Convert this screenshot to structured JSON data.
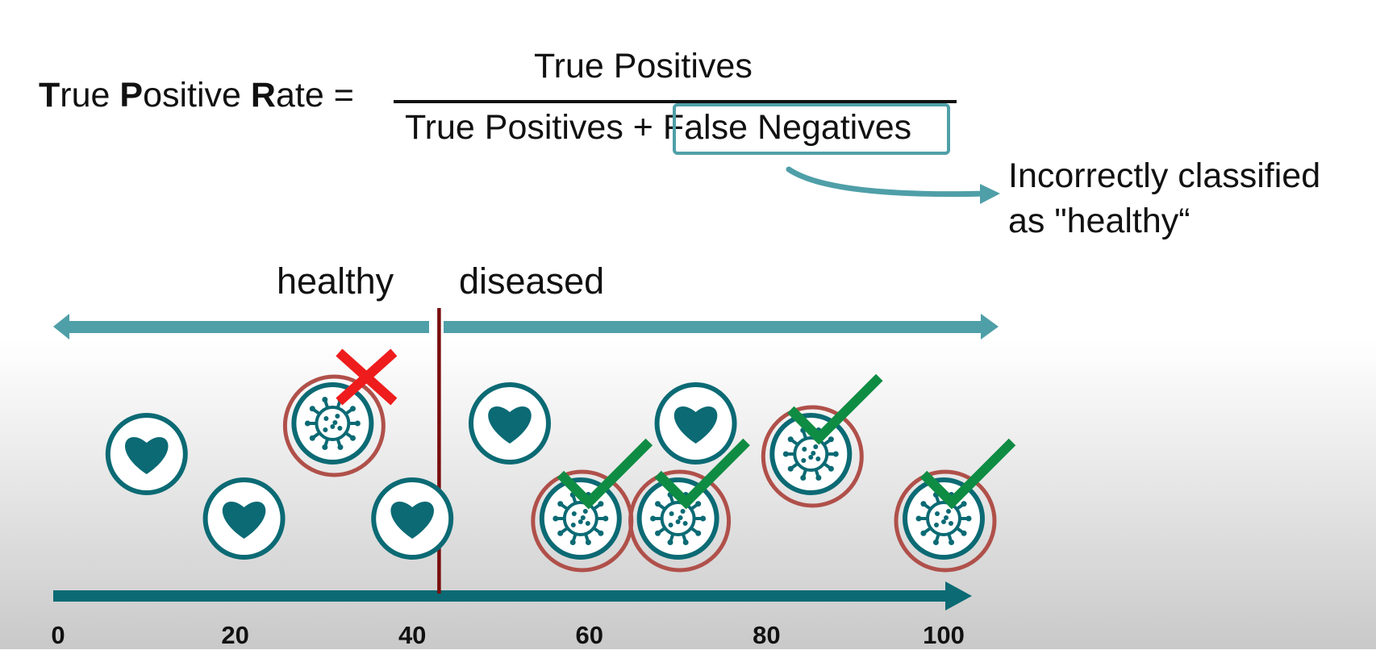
{
  "formula": {
    "lhs_parts": [
      {
        "text": "T",
        "bold": true
      },
      {
        "text": "rue ",
        "bold": false
      },
      {
        "text": "P",
        "bold": true
      },
      {
        "text": "ositive ",
        "bold": false
      },
      {
        "text": "R",
        "bold": true
      },
      {
        "text": "ate =",
        "bold": false
      }
    ],
    "numerator": "True Positives",
    "denominator_left": "True Positives + ",
    "denominator_highlight": "False Negatives"
  },
  "callout": {
    "line1": "Incorrectly classified",
    "line2": "as \"healthy“"
  },
  "regions": {
    "left": "healthy",
    "right": "diseased"
  },
  "axis": {
    "ticks": [
      "0",
      "20",
      "40",
      "60",
      "80",
      "100"
    ],
    "threshold": 43
  },
  "samples": [
    {
      "kind": "heart",
      "x": 10,
      "level": 1
    },
    {
      "kind": "heart",
      "x": 21,
      "level": 2
    },
    {
      "kind": "virus",
      "x": 31,
      "level": 0,
      "mark": "cross"
    },
    {
      "kind": "heart",
      "x": 40,
      "level": 2
    },
    {
      "kind": "heart",
      "x": 51,
      "level": 0
    },
    {
      "kind": "virus",
      "x": 59,
      "level": 2,
      "mark": "check"
    },
    {
      "kind": "heart",
      "x": 72,
      "level": 0
    },
    {
      "kind": "virus",
      "x": 70,
      "level": 2,
      "mark": "check"
    },
    {
      "kind": "virus",
      "x": 85,
      "level": 1,
      "mark": "check"
    },
    {
      "kind": "virus",
      "x": 100,
      "level": 2,
      "mark": "check"
    }
  ],
  "colors": {
    "teal": "#0b6a74",
    "light_teal": "#4f9fa8",
    "threshold": "#7a0d0d",
    "ring_red": "#b0504a",
    "cross": "#ee1c1c",
    "check": "#0f8c43"
  }
}
